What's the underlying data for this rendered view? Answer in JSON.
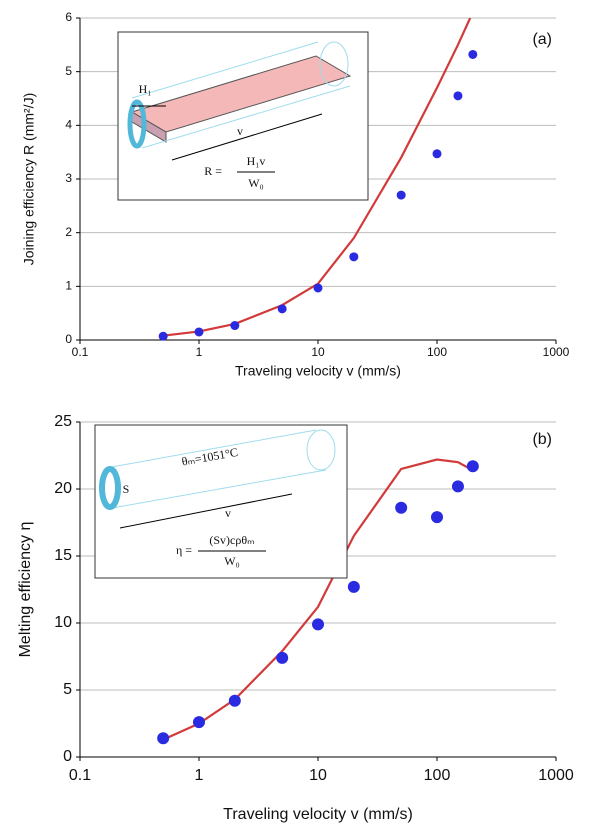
{
  "chart_data": [
    {
      "type": "scatter",
      "xscale": "log",
      "xlim": [
        0.1,
        1000
      ],
      "xticks": [
        0.1,
        1,
        10,
        100,
        1000
      ],
      "ylim": [
        0,
        6
      ],
      "yticks": [
        0,
        1,
        2,
        3,
        4,
        5,
        6
      ],
      "grid": true,
      "xlabel": "Traveling velocity v (mm/s)",
      "ylabel": "Joining efficiency R (mm²/J)",
      "annotations": [
        "(a)",
        "H₁",
        "v",
        "R =",
        "H₁v",
        "W₀"
      ],
      "series": [
        {
          "type": "line",
          "color": "#d23a3a",
          "x": [
            0.5,
            1,
            2,
            5,
            10,
            20,
            50,
            100,
            150,
            190
          ],
          "values": [
            0.08,
            0.16,
            0.3,
            0.65,
            1.05,
            1.9,
            3.4,
            4.7,
            5.5,
            6.0
          ]
        },
        {
          "type": "scatter",
          "color": "#2a2ae0",
          "x": [
            0.5,
            1,
            2,
            5,
            10,
            20,
            50,
            100,
            150,
            200
          ],
          "values": [
            0.07,
            0.15,
            0.27,
            0.58,
            0.97,
            1.55,
            2.7,
            3.47,
            4.55,
            5.32
          ]
        }
      ]
    },
    {
      "type": "scatter",
      "xscale": "log",
      "xlim": [
        0.1,
        1000
      ],
      "xticks": [
        0.1,
        1,
        10,
        100,
        1000
      ],
      "ylim": [
        0,
        25
      ],
      "yticks": [
        0,
        5,
        10,
        15,
        20,
        25
      ],
      "grid": true,
      "xlabel": "Traveling velocity v (mm/s)",
      "ylabel": "Melting efficiency η",
      "annotations": [
        "(b)",
        "θₘ=1051°C",
        "S",
        "v",
        "η =",
        "(Sv)cρθₘ",
        "W₀"
      ],
      "series": [
        {
          "type": "line",
          "color": "#d23a3a",
          "x": [
            0.5,
            1,
            2,
            5,
            10,
            20,
            50,
            100,
            150,
            200
          ],
          "values": [
            1.3,
            2.5,
            4.3,
            7.9,
            11.2,
            16.5,
            21.5,
            22.2,
            22.0,
            21.4
          ]
        },
        {
          "type": "scatter",
          "color": "#2a2ae0",
          "x": [
            0.5,
            1,
            2,
            5,
            10,
            20,
            50,
            100,
            150,
            200
          ],
          "values": [
            1.4,
            2.6,
            4.2,
            7.4,
            9.9,
            12.7,
            18.6,
            17.9,
            20.2,
            21.7
          ]
        }
      ]
    }
  ]
}
